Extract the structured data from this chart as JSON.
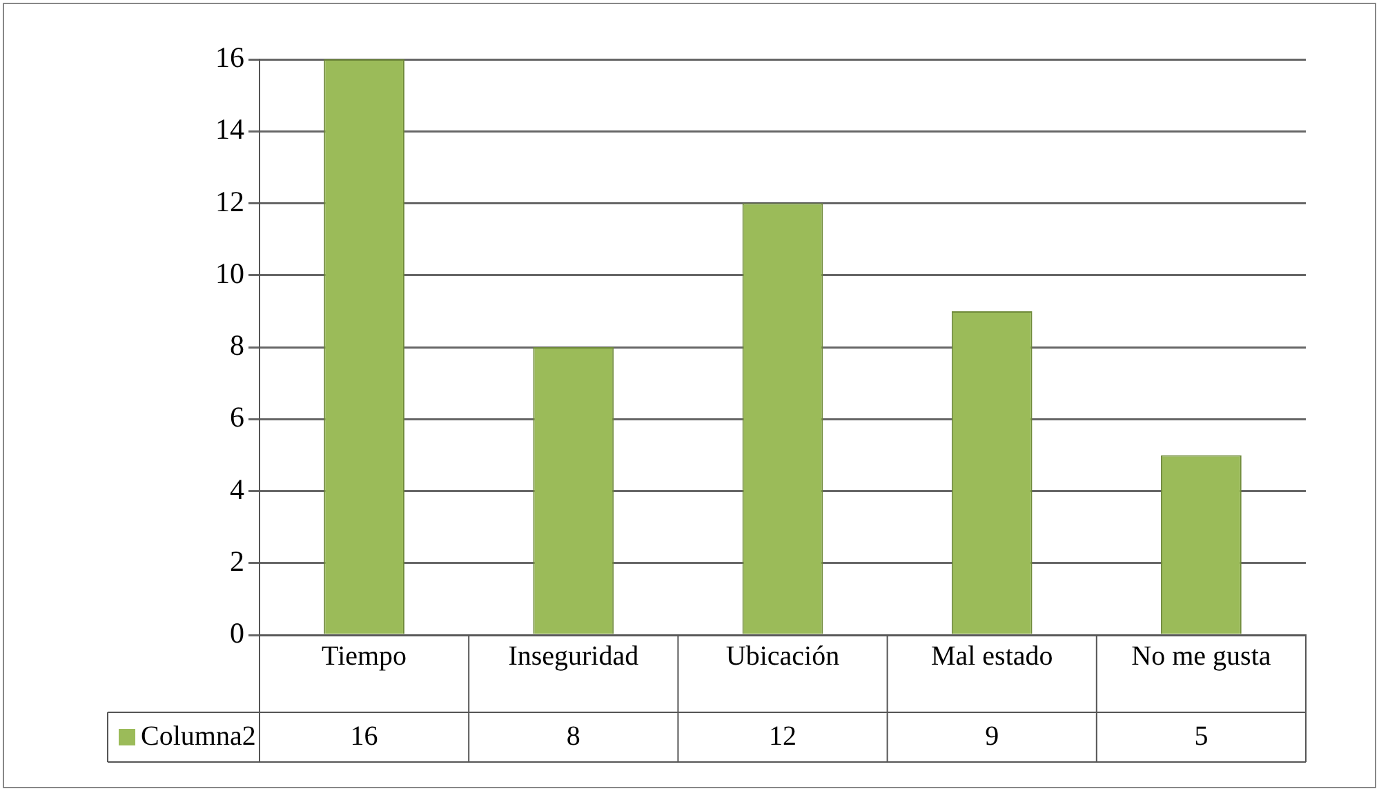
{
  "chart_data": {
    "type": "bar",
    "categories": [
      "Tiempo",
      "Inseguridad",
      "Ubicación",
      "Mal estado",
      "No me gusta"
    ],
    "series": [
      {
        "name": "Columna2",
        "color": "#9bbb59",
        "values": [
          16,
          8,
          12,
          9,
          5
        ]
      }
    ],
    "ylim": [
      0,
      16
    ],
    "yticks": [
      0,
      2,
      4,
      6,
      8,
      10,
      12,
      14,
      16
    ],
    "grid": "y",
    "legend": "bottom left",
    "data_labels": true
  }
}
